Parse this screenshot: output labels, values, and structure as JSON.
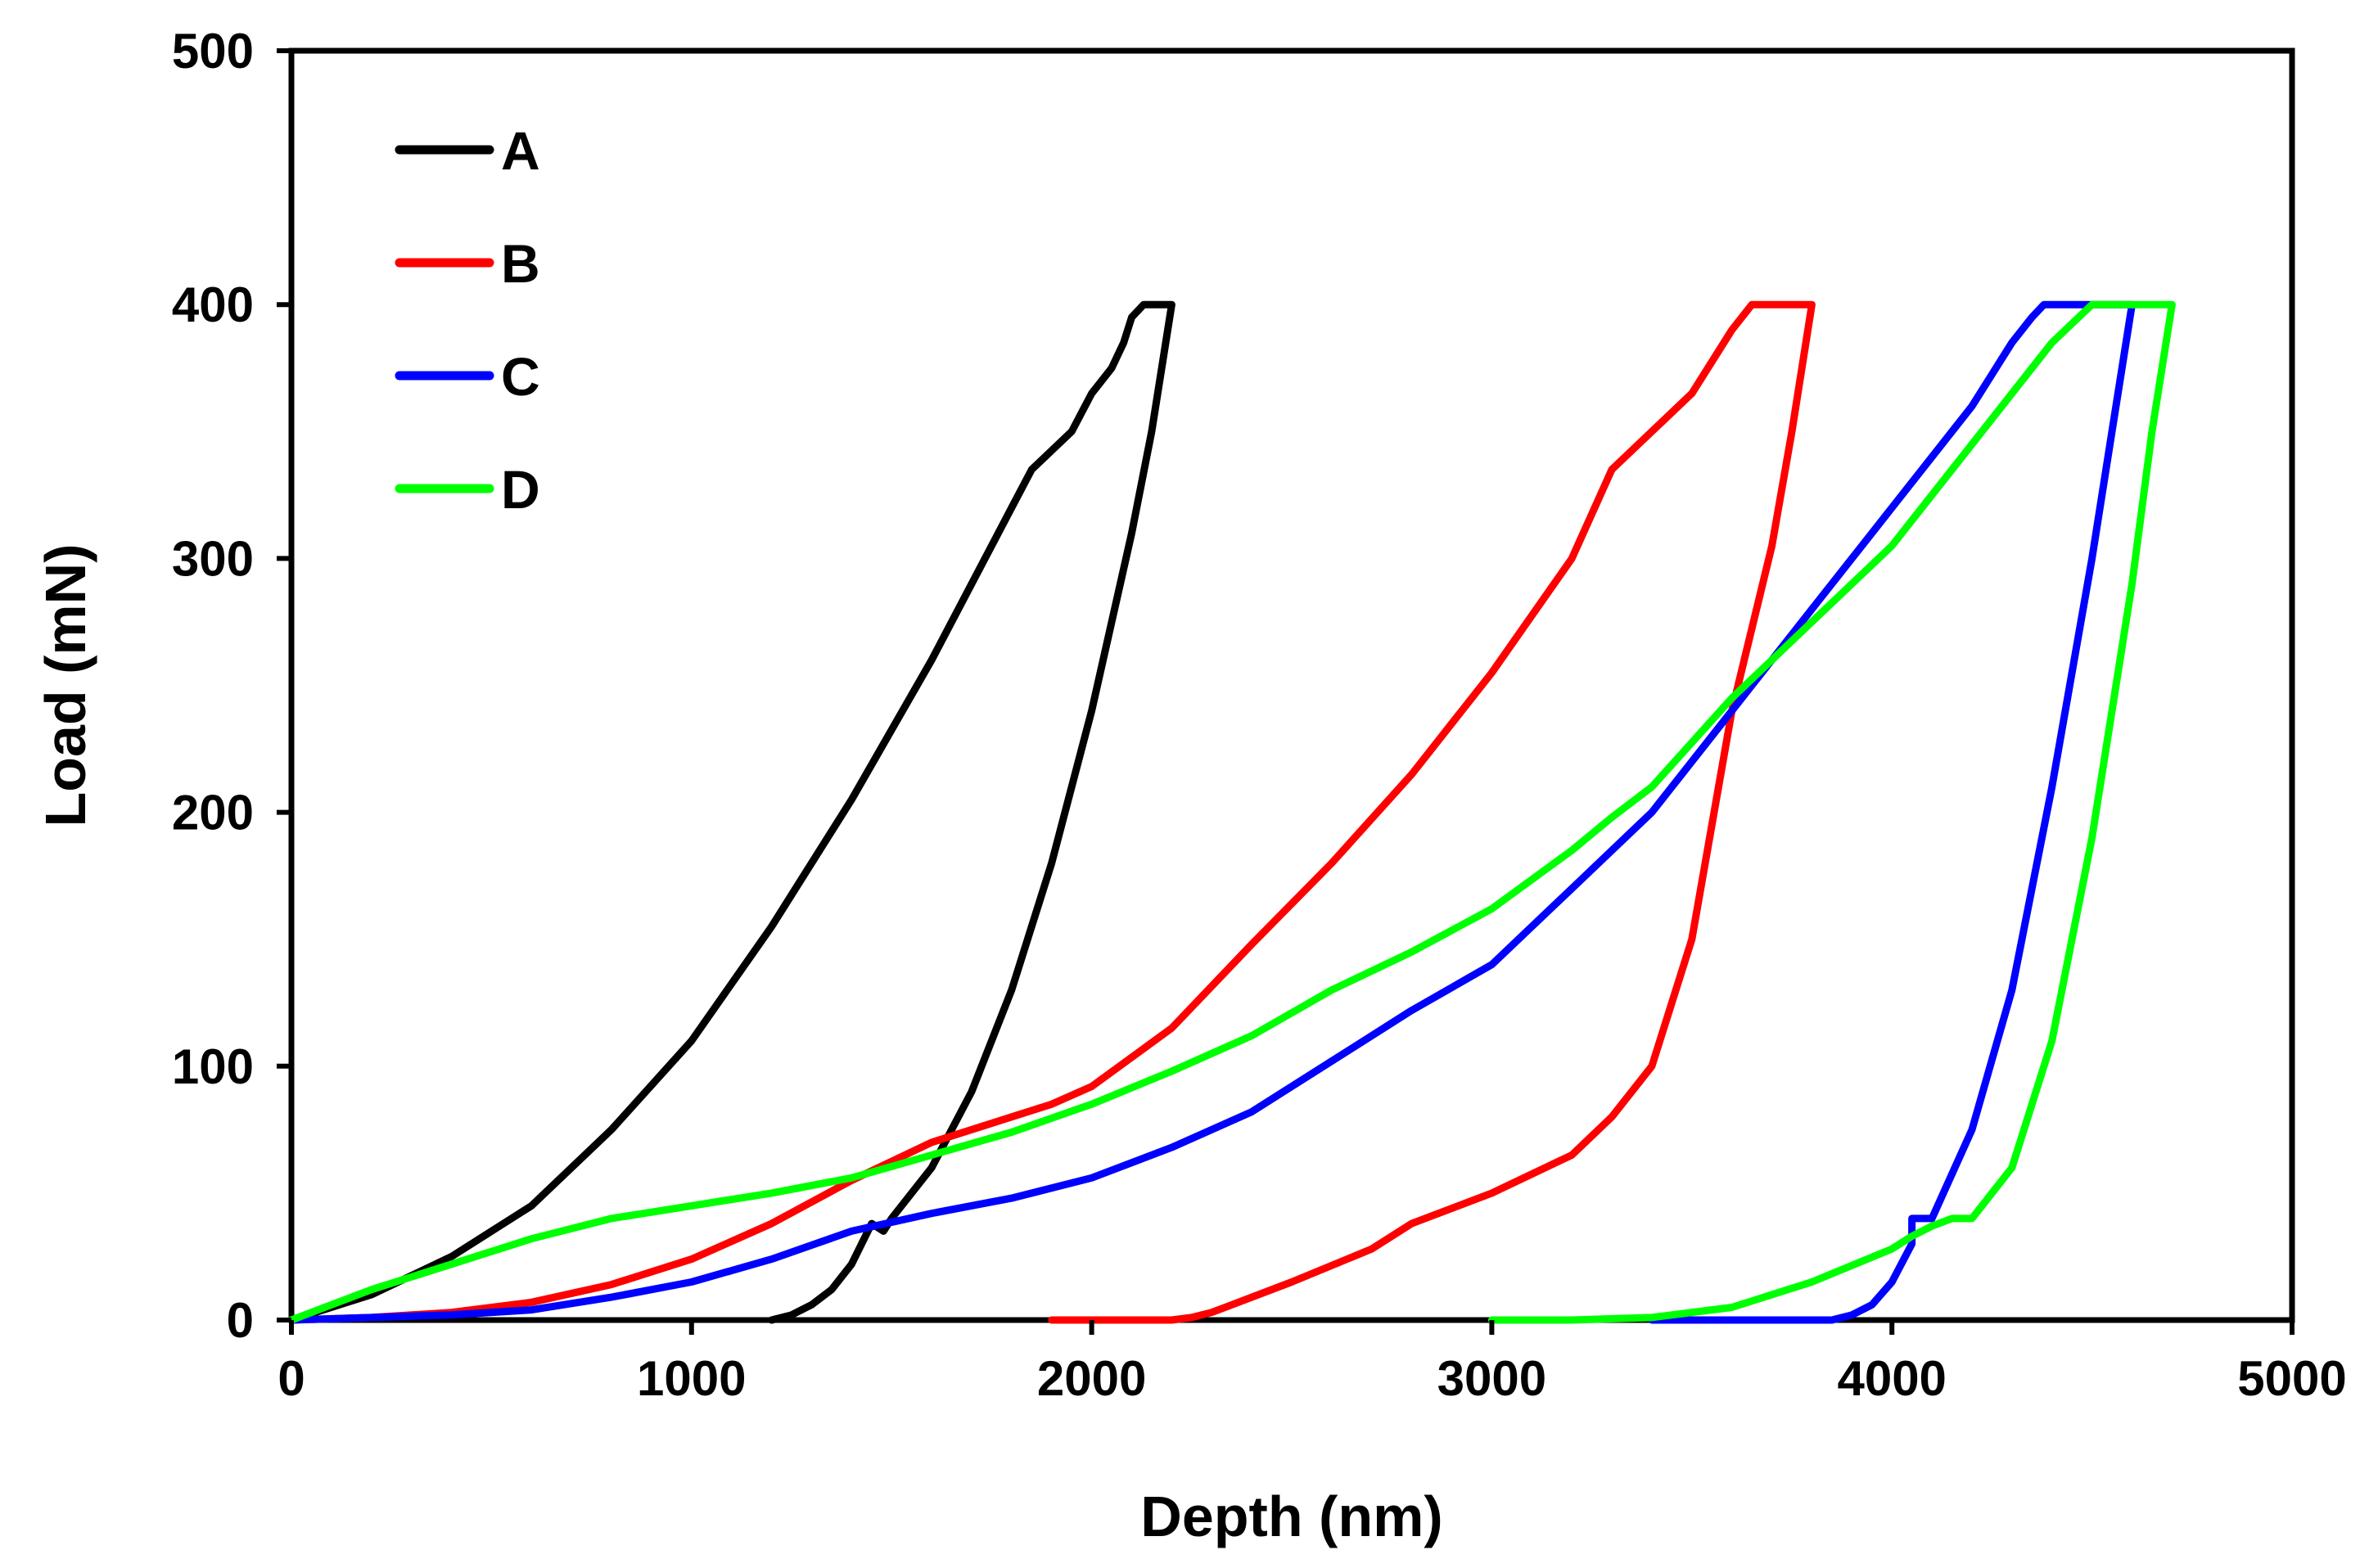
{
  "chart_data": {
    "type": "line",
    "title": "",
    "xlabel": "Depth (nm)",
    "ylabel": "Load (mN)",
    "xlim": [
      0,
      5000
    ],
    "ylim": [
      0,
      500
    ],
    "xticks": [
      0,
      1000,
      2000,
      3000,
      4000,
      5000
    ],
    "yticks": [
      0,
      100,
      200,
      300,
      400,
      500
    ],
    "xtick_labels": [
      "0",
      "1000",
      "2000",
      "3000",
      "4000",
      "5000"
    ],
    "ytick_labels": [
      "0",
      "100",
      "200",
      "300",
      "400",
      "500"
    ],
    "grid": false,
    "legend_position": "top-left",
    "series": [
      {
        "name": "A",
        "color": "#000000",
        "x": [
          0,
          200,
          400,
          600,
          800,
          1000,
          1200,
          1400,
          1600,
          1800,
          1850,
          1950,
          2000,
          2050,
          2080,
          2100,
          2130,
          2150,
          2170,
          2190,
          2200,
          2150,
          2100,
          2000,
          1900,
          1800,
          1700,
          1600,
          1500,
          1480,
          1450,
          1400,
          1350,
          1300,
          1250,
          1200
        ],
        "y": [
          0,
          10,
          25,
          45,
          75,
          110,
          155,
          205,
          260,
          320,
          335,
          350,
          365,
          375,
          385,
          395,
          400,
          400,
          400,
          400,
          400,
          350,
          310,
          240,
          180,
          130,
          90,
          60,
          40,
          35,
          38,
          22,
          12,
          6,
          2,
          0
        ]
      },
      {
        "name": "B",
        "color": "#ff0000",
        "x": [
          0,
          200,
          400,
          600,
          800,
          1000,
          1200,
          1400,
          1600,
          1800,
          1900,
          2000,
          2200,
          2400,
          2600,
          2800,
          3000,
          3200,
          3300,
          3400,
          3500,
          3600,
          3650,
          3700,
          3750,
          3800,
          3750,
          3700,
          3600,
          3500,
          3400,
          3300,
          3200,
          3000,
          2800,
          2700,
          2500,
          2350,
          2300,
          2250,
          2200,
          2000,
          1900
        ],
        "y": [
          0,
          1,
          3,
          7,
          14,
          24,
          38,
          55,
          70,
          80,
          85,
          92,
          115,
          148,
          180,
          215,
          255,
          300,
          335,
          350,
          365,
          390,
          400,
          400,
          400,
          400,
          350,
          305,
          240,
          150,
          100,
          80,
          65,
          50,
          38,
          28,
          15,
          6,
          3,
          1,
          0,
          0,
          0
        ]
      },
      {
        "name": "C",
        "color": "#0000ff",
        "x": [
          0,
          200,
          400,
          600,
          800,
          1000,
          1200,
          1400,
          1600,
          1800,
          2000,
          2200,
          2400,
          2600,
          2800,
          3000,
          3200,
          3400,
          3600,
          3800,
          4000,
          4200,
          4300,
          4350,
          4380,
          4400,
          4450,
          4500,
          4550,
          4600,
          4550,
          4500,
          4400,
          4300,
          4200,
          4100,
          4050,
          4050,
          4000,
          3950,
          3900,
          3850,
          3600,
          3400
        ],
        "y": [
          0,
          1,
          2,
          4,
          9,
          15,
          24,
          35,
          42,
          48,
          56,
          68,
          82,
          102,
          122,
          140,
          170,
          200,
          240,
          280,
          320,
          360,
          385,
          395,
          400,
          400,
          400,
          400,
          400,
          400,
          350,
          300,
          210,
          130,
          75,
          40,
          40,
          30,
          15,
          6,
          2,
          0,
          0,
          0
        ]
      },
      {
        "name": "D",
        "color": "#00ff00",
        "x": [
          0,
          200,
          400,
          600,
          800,
          1000,
          1200,
          1400,
          1600,
          1800,
          2000,
          2200,
          2400,
          2600,
          2800,
          3000,
          3200,
          3300,
          3400,
          3600,
          3800,
          4000,
          4200,
          4400,
          4500,
          4600,
          4700,
          4650,
          4600,
          4500,
          4400,
          4300,
          4200,
          4180,
          4150,
          4100,
          4050,
          4000,
          3800,
          3600,
          3400,
          3200,
          3000
        ],
        "y": [
          0,
          12,
          22,
          32,
          40,
          45,
          50,
          56,
          65,
          74,
          85,
          98,
          112,
          130,
          145,
          162,
          185,
          198,
          210,
          245,
          275,
          305,
          345,
          385,
          400,
          400,
          400,
          350,
          290,
          190,
          110,
          60,
          40,
          40,
          40,
          37,
          33,
          28,
          15,
          5,
          1,
          0,
          0
        ]
      }
    ]
  }
}
